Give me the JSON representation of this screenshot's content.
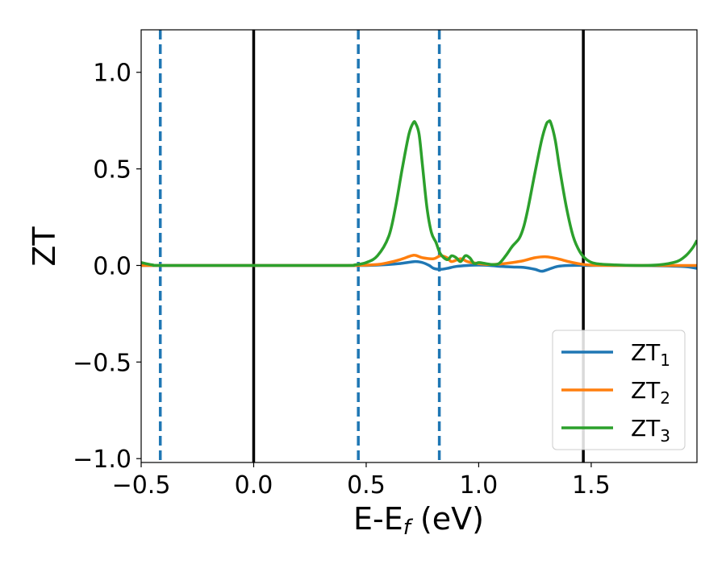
{
  "chart_data": {
    "type": "line",
    "xlabel_main": "E-E",
    "xlabel_sub": "f",
    "xlabel_unit": " (eV)",
    "ylabel": "ZT",
    "xlim": [
      -0.5,
      1.97
    ],
    "ylim": [
      -1.02,
      1.22
    ],
    "x_ticks": [
      -0.5,
      0.0,
      0.5,
      1.0,
      1.5
    ],
    "x_tick_labels": [
      "−0.5",
      "0.0",
      "0.5",
      "1.0",
      "1.5"
    ],
    "y_ticks": [
      -1.0,
      -0.5,
      0.0,
      0.5,
      1.0
    ],
    "y_tick_labels": [
      "−1.0",
      "−0.5",
      "0.0",
      "0.5",
      "1.0"
    ],
    "grid": false,
    "legend_position": "bottom-right",
    "vlines_solid": [
      0.0,
      1.465
    ],
    "vlines_dashed": [
      -0.415,
      0.465,
      0.825
    ],
    "series": [
      {
        "name": "ZT",
        "sub": "1",
        "color": "#1f77b4",
        "x": [
          -0.5,
          0.3,
          0.5,
          0.6,
          0.65,
          0.7,
          0.72,
          0.75,
          0.78,
          0.8,
          0.83,
          0.86,
          0.9,
          0.95,
          1.0,
          1.05,
          1.1,
          1.15,
          1.2,
          1.25,
          1.28,
          1.31,
          1.35,
          1.4,
          1.5,
          1.7,
          1.9,
          1.97
        ],
        "y": [
          0.0,
          0.0,
          0.0,
          0.005,
          0.01,
          0.018,
          0.02,
          0.015,
          0.0,
          -0.015,
          -0.02,
          -0.015,
          -0.005,
          0.0,
          0.002,
          0.0,
          -0.005,
          -0.008,
          -0.01,
          -0.02,
          -0.03,
          -0.02,
          -0.005,
          0.0,
          0.0,
          0.0,
          -0.005,
          -0.015
        ]
      },
      {
        "name": "ZT",
        "sub": "2",
        "color": "#ff7f0e",
        "x": [
          -0.5,
          0.3,
          0.45,
          0.55,
          0.6,
          0.65,
          0.7,
          0.72,
          0.75,
          0.8,
          0.83,
          0.86,
          0.88,
          0.92,
          0.95,
          1.0,
          1.05,
          1.1,
          1.15,
          1.2,
          1.25,
          1.3,
          1.35,
          1.4,
          1.45,
          1.5,
          1.6,
          1.7,
          1.8,
          1.9,
          1.97
        ],
        "y": [
          0.0,
          0.0,
          0.0,
          0.005,
          0.015,
          0.03,
          0.05,
          0.052,
          0.04,
          0.035,
          0.05,
          0.04,
          0.02,
          0.035,
          0.02,
          0.01,
          0.005,
          0.008,
          0.015,
          0.025,
          0.04,
          0.045,
          0.035,
          0.02,
          0.008,
          0.002,
          0.0,
          0.0,
          0.0,
          0.0,
          0.0
        ]
      },
      {
        "name": "ZT",
        "sub": "3",
        "color": "#2ca02c",
        "x": [
          -0.5,
          -0.45,
          -0.4,
          0.0,
          0.4,
          0.45,
          0.5,
          0.55,
          0.6,
          0.63,
          0.66,
          0.69,
          0.71,
          0.72,
          0.735,
          0.75,
          0.77,
          0.79,
          0.81,
          0.83,
          0.86,
          0.88,
          0.9,
          0.92,
          0.94,
          0.96,
          0.98,
          1.0,
          1.03,
          1.06,
          1.09,
          1.12,
          1.15,
          1.18,
          1.2,
          1.22,
          1.25,
          1.28,
          1.3,
          1.31,
          1.32,
          1.34,
          1.36,
          1.39,
          1.42,
          1.45,
          1.48,
          1.52,
          1.6,
          1.7,
          1.8,
          1.88,
          1.92,
          1.95,
          1.97
        ],
        "y": [
          0.015,
          0.003,
          0.0,
          0.0,
          0.0,
          0.003,
          0.015,
          0.05,
          0.15,
          0.3,
          0.5,
          0.68,
          0.74,
          0.735,
          0.68,
          0.52,
          0.3,
          0.17,
          0.12,
          0.06,
          0.03,
          0.05,
          0.04,
          0.02,
          0.05,
          0.04,
          0.01,
          0.015,
          0.01,
          0.005,
          0.01,
          0.05,
          0.1,
          0.14,
          0.2,
          0.3,
          0.48,
          0.65,
          0.73,
          0.745,
          0.74,
          0.65,
          0.5,
          0.3,
          0.15,
          0.07,
          0.03,
          0.01,
          0.003,
          0.0,
          0.003,
          0.02,
          0.05,
          0.09,
          0.13
        ]
      }
    ]
  }
}
